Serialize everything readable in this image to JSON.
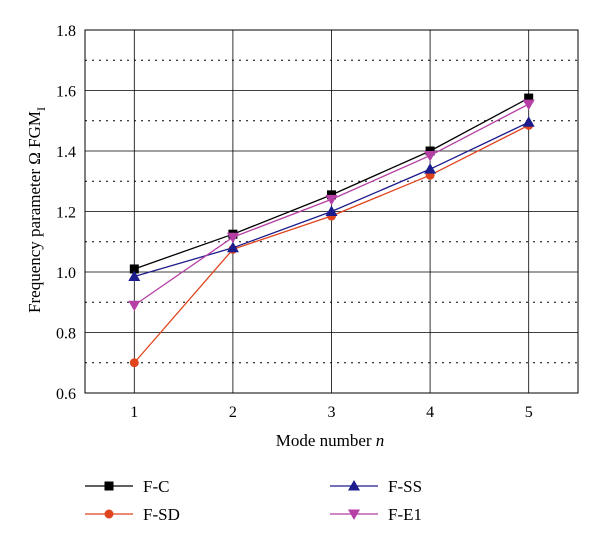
{
  "chart_data": {
    "type": "line",
    "x": [
      1,
      2,
      3,
      4,
      5
    ],
    "xlabel": "Mode number",
    "xlabel_var": "n",
    "ylabel": "Frequency parameter Ω FGM",
    "ylabel_sub": "I",
    "xlim": [
      0.5,
      5.5
    ],
    "ylim": [
      0.6,
      1.8
    ],
    "x_ticks": [
      "1",
      "2",
      "3",
      "4",
      "5"
    ],
    "y_ticks": [
      "0.6",
      "0.8",
      "1.0",
      "1.2",
      "1.4",
      "1.6",
      "1.8"
    ],
    "grid": "solid major, dotted minor (horizontal)",
    "legend_position": "bottom",
    "series": [
      {
        "name": "F-C",
        "color": "#000000",
        "marker": "square",
        "values": [
          1.01,
          1.125,
          1.255,
          1.4,
          1.575
        ]
      },
      {
        "name": "F-SD",
        "color": "#e0441c",
        "marker": "circle",
        "values": [
          0.7,
          1.075,
          1.185,
          1.32,
          1.485
        ]
      },
      {
        "name": "F-SS",
        "color": "#1c1c8c",
        "marker": "triangle-up",
        "values": [
          0.985,
          1.08,
          1.2,
          1.34,
          1.495
        ]
      },
      {
        "name": "F-E1",
        "color": "#b53fa5",
        "marker": "triangle-down",
        "values": [
          0.89,
          1.115,
          1.24,
          1.385,
          1.555
        ]
      }
    ]
  }
}
